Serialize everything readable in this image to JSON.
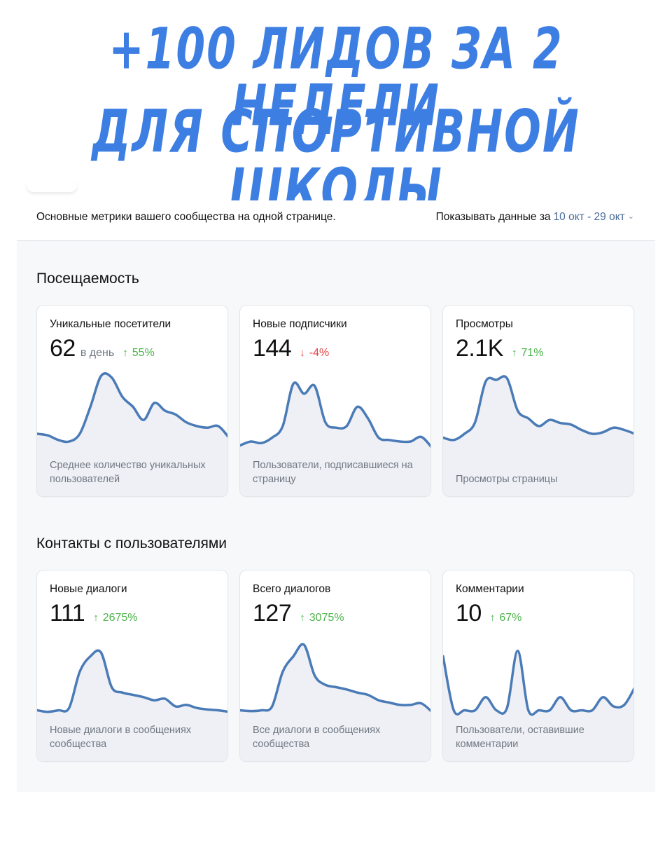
{
  "headline": {
    "line1": "+100 ЛИДОВ ЗА 2 НЕДЕЛИ",
    "line2": "ДЛЯ СПОРТИВНОЙ ШКОЛЫ"
  },
  "header": {
    "description": "Основные метрики вашего сообщества на одной странице.",
    "period_label": "Показывать данные за",
    "period_value": "10 окт - 29 окт"
  },
  "colors": {
    "accent": "#3d7ee3",
    "line": "#4a7bb7",
    "fill": "#eef0f5",
    "up": "#4bb34b",
    "down": "#e64646"
  },
  "sections": [
    {
      "title": "Посещаемость",
      "cards": [
        {
          "title": "Уникальные посетители",
          "value": "62",
          "unit": "в день",
          "delta": "55%",
          "direction": "up",
          "note": "Среднее количество уникальных пользователей",
          "series": [
            0.2,
            0.18,
            0.12,
            0.1,
            0.2,
            0.55,
            0.95,
            0.93,
            0.68,
            0.55,
            0.38,
            0.6,
            0.5,
            0.45,
            0.35,
            0.3,
            0.28,
            0.3,
            0.15
          ]
        },
        {
          "title": "Новые подписчики",
          "value": "144",
          "unit": "",
          "delta": "-4%",
          "direction": "down",
          "note": "Пользователи, подписавшиеся на страницу",
          "series": [
            0.05,
            0.1,
            0.08,
            0.15,
            0.3,
            0.85,
            0.72,
            0.82,
            0.35,
            0.28,
            0.3,
            0.55,
            0.4,
            0.15,
            0.12,
            0.1,
            0.1,
            0.16,
            0.02
          ]
        },
        {
          "title": "Просмотры",
          "value": "2.1K",
          "unit": "",
          "delta": "71%",
          "direction": "up",
          "note": "Просмотры страницы",
          "series": [
            0.15,
            0.12,
            0.2,
            0.35,
            0.88,
            0.9,
            0.92,
            0.5,
            0.4,
            0.3,
            0.38,
            0.34,
            0.32,
            0.25,
            0.2,
            0.22,
            0.28,
            0.25,
            0.2
          ]
        }
      ]
    },
    {
      "title": "Контакты с пользователями",
      "cards": [
        {
          "title": "Новые диалоги",
          "value": "111",
          "unit": "",
          "delta": "2675%",
          "direction": "up",
          "note": "Новые диалоги в сообщениях сообщества",
          "series": [
            0.05,
            0.03,
            0.05,
            0.08,
            0.55,
            0.75,
            0.8,
            0.35,
            0.28,
            0.25,
            0.22,
            0.18,
            0.2,
            0.1,
            0.12,
            0.08,
            0.06,
            0.05,
            0.03
          ]
        },
        {
          "title": "Всего диалогов",
          "value": "127",
          "unit": "",
          "delta": "3075%",
          "direction": "up",
          "note": "Все диалоги в сообщениях сообщества",
          "series": [
            0.05,
            0.04,
            0.05,
            0.1,
            0.55,
            0.75,
            0.9,
            0.5,
            0.38,
            0.35,
            0.32,
            0.28,
            0.25,
            0.18,
            0.15,
            0.12,
            0.12,
            0.14,
            0.03
          ]
        },
        {
          "title": "Комментарии",
          "value": "10",
          "unit": "",
          "delta": "67%",
          "direction": "up",
          "note": "Пользователи, оставившие комментарии",
          "series": [
            0.75,
            0.05,
            0.05,
            0.05,
            0.22,
            0.05,
            0.08,
            0.82,
            0.05,
            0.05,
            0.05,
            0.22,
            0.05,
            0.05,
            0.05,
            0.22,
            0.1,
            0.12,
            0.35
          ]
        }
      ]
    }
  ]
}
